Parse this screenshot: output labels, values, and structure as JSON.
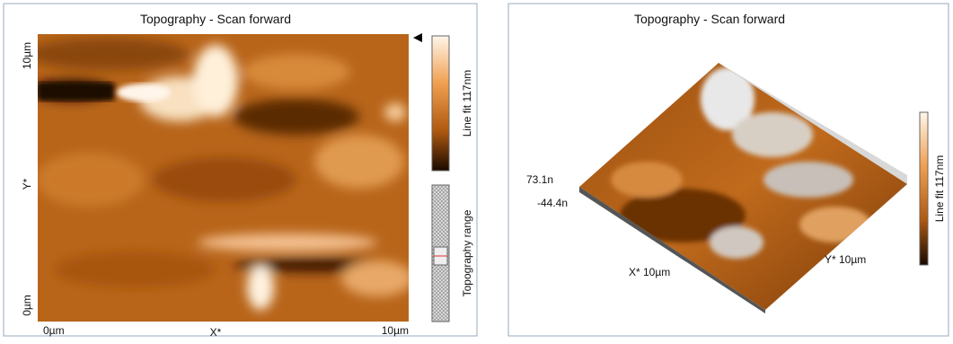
{
  "left_panel": {
    "title": "Topography - Scan forward",
    "y_axis": {
      "top": "10µm",
      "label": "Y*",
      "bottom": "0µm"
    },
    "x_axis": {
      "left": "0µm",
      "label": "X*",
      "right": "10µm"
    },
    "colorbar_label": "Line fit 117nm",
    "range_label": "Topography range"
  },
  "right_panel": {
    "title": "Topography - Scan forward",
    "z_max": "73.1n",
    "z_min": "-44.4n",
    "x_label": "X* 10µm",
    "y_label": "Y* 10µm",
    "colorbar_label": "Line fit 117nm"
  }
}
